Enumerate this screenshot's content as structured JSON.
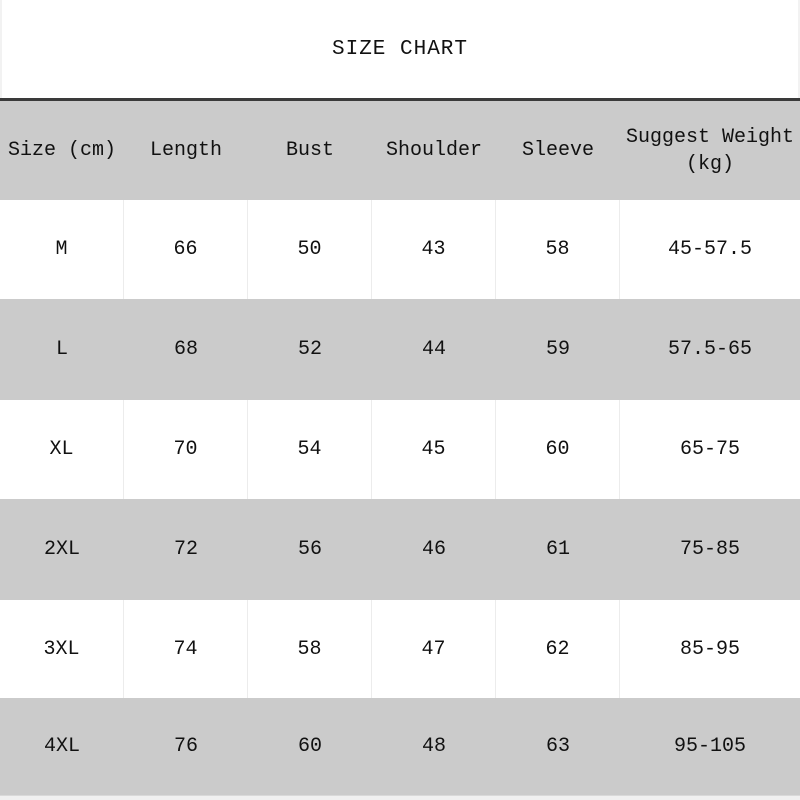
{
  "title": "SIZE CHART",
  "chart_data": {
    "type": "table",
    "title": "SIZE CHART",
    "columns": [
      "Size (cm)",
      "Length",
      "Bust",
      "Shoulder",
      "Sleeve",
      "Suggest Weight (kg)"
    ],
    "rows": [
      [
        "M",
        "66",
        "50",
        "43",
        "58",
        "45-57.5"
      ],
      [
        "L",
        "68",
        "52",
        "44",
        "59",
        "57.5-65"
      ],
      [
        "XL",
        "70",
        "54",
        "45",
        "60",
        "65-75"
      ],
      [
        "2XL",
        "72",
        "56",
        "46",
        "61",
        "75-85"
      ],
      [
        "3XL",
        "74",
        "58",
        "47",
        "62",
        "85-95"
      ],
      [
        "4XL",
        "76",
        "60",
        "48",
        "63",
        "95-105"
      ]
    ]
  },
  "colors": {
    "alt_row_bg": "#cbcbcb",
    "divider": "#3a3a3a",
    "cell_border": "#ececec",
    "text": "#111111"
  }
}
